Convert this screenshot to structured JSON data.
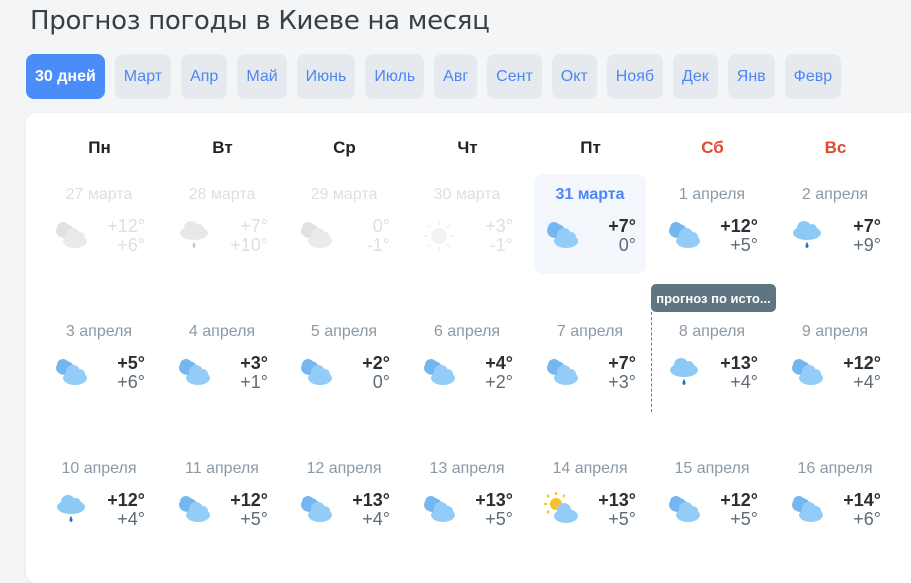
{
  "title": "Прогноз погоды в Киеве на месяц",
  "tabs": [
    "30 дней",
    "Март",
    "Апр",
    "Май",
    "Июнь",
    "Июль",
    "Авг",
    "Сент",
    "Окт",
    "Нояб",
    "Дек",
    "Янв",
    "Февр"
  ],
  "active_tab": 0,
  "weekdays": [
    {
      "label": "Пн",
      "weekend": false
    },
    {
      "label": "Вт",
      "weekend": false
    },
    {
      "label": "Ср",
      "weekend": false
    },
    {
      "label": "Чт",
      "weekend": false
    },
    {
      "label": "Пт",
      "weekend": false
    },
    {
      "label": "Сб",
      "weekend": true
    },
    {
      "label": "Вс",
      "weekend": true
    }
  ],
  "colors": {
    "accent": "#4b8df8",
    "weekend": "#e0492e",
    "tooltip": "#5f7582"
  },
  "tooltip": "прогноз по исто...",
  "days": [
    {
      "date": "27 марта",
      "hi": "+12°",
      "lo": "+6°",
      "icon": "cloudy-icon",
      "past": true
    },
    {
      "date": "28 марта",
      "hi": "+7°",
      "lo": "+10°",
      "icon": "rain-icon",
      "past": true
    },
    {
      "date": "29 марта",
      "hi": "0°",
      "lo": "-1°",
      "icon": "cloudy-icon",
      "past": true
    },
    {
      "date": "30 марта",
      "hi": "+3°",
      "lo": "-1°",
      "icon": "sun-icon",
      "past": true
    },
    {
      "date": "31 марта",
      "hi": "+7°",
      "lo": "0°",
      "icon": "cloudy-icon",
      "today": true
    },
    {
      "date": "1 апреля",
      "hi": "+12°",
      "lo": "+5°",
      "icon": "cloudy-icon"
    },
    {
      "date": "2 апреля",
      "hi": "+7°",
      "lo": "+9°",
      "icon": "rain-icon"
    },
    {
      "date": "3 апреля",
      "hi": "+5°",
      "lo": "+6°",
      "icon": "cloudy-icon"
    },
    {
      "date": "4 апреля",
      "hi": "+3°",
      "lo": "+1°",
      "icon": "cloudy-icon"
    },
    {
      "date": "5 апреля",
      "hi": "+2°",
      "lo": "0°",
      "icon": "cloudy-icon"
    },
    {
      "date": "6 апреля",
      "hi": "+4°",
      "lo": "+2°",
      "icon": "cloudy-icon"
    },
    {
      "date": "7 апреля",
      "hi": "+7°",
      "lo": "+3°",
      "icon": "cloudy-icon"
    },
    {
      "date": "8 апреля",
      "hi": "+13°",
      "lo": "+4°",
      "icon": "rain-icon"
    },
    {
      "date": "9 апреля",
      "hi": "+12°",
      "lo": "+4°",
      "icon": "cloudy-icon"
    },
    {
      "date": "10 апреля",
      "hi": "+12°",
      "lo": "+4°",
      "icon": "rain-icon"
    },
    {
      "date": "11 апреля",
      "hi": "+12°",
      "lo": "+5°",
      "icon": "cloudy-icon"
    },
    {
      "date": "12 апреля",
      "hi": "+13°",
      "lo": "+4°",
      "icon": "cloudy-icon"
    },
    {
      "date": "13 апреля",
      "hi": "+13°",
      "lo": "+5°",
      "icon": "cloudy-icon"
    },
    {
      "date": "14 апреля",
      "hi": "+13°",
      "lo": "+5°",
      "icon": "sun-cloud-icon"
    },
    {
      "date": "15 апреля",
      "hi": "+12°",
      "lo": "+5°",
      "icon": "cloudy-icon"
    },
    {
      "date": "16 апреля",
      "hi": "+14°",
      "lo": "+6°",
      "icon": "cloudy-icon"
    }
  ]
}
